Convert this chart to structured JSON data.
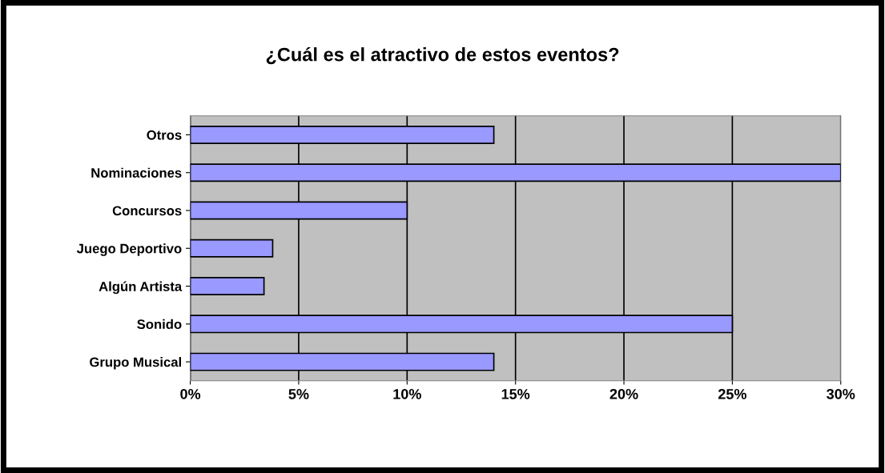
{
  "chart_data": {
    "type": "bar",
    "orientation": "horizontal",
    "title": "¿Cuál es el atractivo de estos eventos?",
    "categories": [
      "Otros",
      "Nominaciones",
      "Concursos",
      "Juego Deportivo",
      "Algún Artista",
      "Sonido",
      "Grupo Musical"
    ],
    "values": [
      14,
      30,
      10,
      3.8,
      3.4,
      25,
      14
    ],
    "color": "#9999ff",
    "xlim": [
      0,
      30
    ],
    "xticks": [
      {
        "value": 0,
        "label": "0%"
      },
      {
        "value": 5,
        "label": "5%"
      },
      {
        "value": 10,
        "label": "10%"
      },
      {
        "value": 15,
        "label": "15%"
      },
      {
        "value": 20,
        "label": "20%"
      },
      {
        "value": 25,
        "label": "25%"
      },
      {
        "value": 30,
        "label": "30%"
      }
    ],
    "grid": "x",
    "legend": false
  }
}
